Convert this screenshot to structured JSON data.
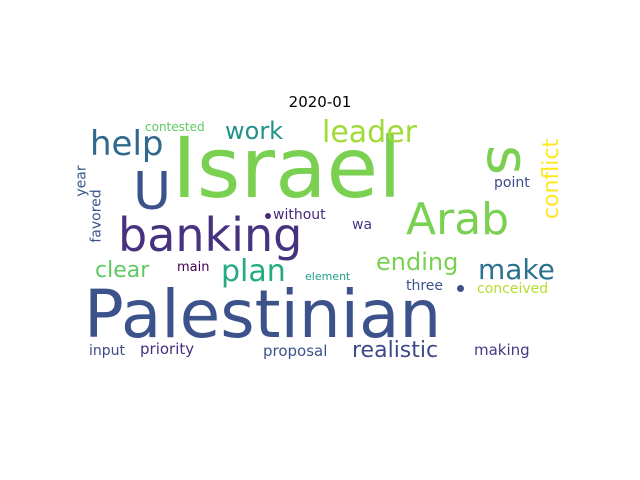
{
  "title": "2020-01",
  "words": [
    {
      "text": "Palestinian",
      "color": "#3b528b"
    },
    {
      "text": "Israel",
      "color": "#7ad151"
    },
    {
      "text": "banking",
      "color": "#46327e"
    },
    {
      "text": "Arab",
      "color": "#7ad151"
    },
    {
      "text": "s",
      "color": "#7ad151"
    },
    {
      "text": "U",
      "color": "#3b528b"
    },
    {
      "text": "help",
      "color": "#31688e"
    },
    {
      "text": "leader",
      "color": "#a0da39"
    },
    {
      "text": "work",
      "color": "#21918c"
    },
    {
      "text": "conflict",
      "color": "#fde725"
    },
    {
      "text": "plan",
      "color": "#25ab82"
    },
    {
      "text": "make",
      "color": "#2c728e"
    },
    {
      "text": "ending",
      "color": "#7ad151"
    },
    {
      "text": "clear",
      "color": "#5ec962"
    },
    {
      "text": "realistic",
      "color": "#3e4989"
    },
    {
      "text": "contested",
      "color": "#5ec962"
    },
    {
      "text": "point",
      "color": "#3e4989"
    },
    {
      "text": "year",
      "color": "#38598c"
    },
    {
      "text": "favored",
      "color": "#3b528b"
    },
    {
      "text": "without",
      "color": "#482878"
    },
    {
      "text": "wa",
      "color": "#443983"
    },
    {
      "text": "main",
      "color": "#440154"
    },
    {
      "text": "element",
      "color": "#1f9e89"
    },
    {
      "text": "three",
      "color": "#3b528b"
    },
    {
      "text": "conceived",
      "color": "#b5de2b"
    },
    {
      "text": "input",
      "color": "#3e4989"
    },
    {
      "text": "priority",
      "color": "#472d7b"
    },
    {
      "text": "proposal",
      "color": "#3b528b"
    },
    {
      "text": "making",
      "color": "#443983"
    }
  ],
  "colors": {
    "background": "#ffffff",
    "title": "#000000"
  }
}
